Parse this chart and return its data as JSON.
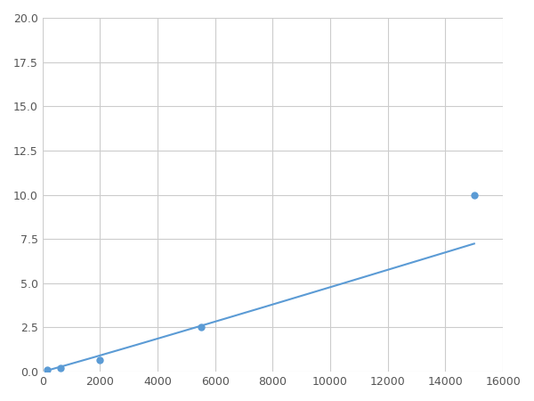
{
  "x": [
    156,
    625,
    2000,
    5500,
    15000
  ],
  "y": [
    0.1,
    0.2,
    0.65,
    2.5,
    10.0
  ],
  "line_color": "#5b9bd5",
  "marker_color": "#5b9bd5",
  "marker_size": 5,
  "xlim": [
    0,
    16000
  ],
  "ylim": [
    0,
    20.0
  ],
  "xticks": [
    0,
    2000,
    4000,
    6000,
    8000,
    10000,
    12000,
    14000,
    16000
  ],
  "yticks": [
    0.0,
    2.5,
    5.0,
    7.5,
    10.0,
    12.5,
    15.0,
    17.5,
    20.0
  ],
  "grid_color": "#cccccc",
  "background_color": "#ffffff",
  "figsize": [
    6.0,
    4.5
  ],
  "dpi": 100
}
